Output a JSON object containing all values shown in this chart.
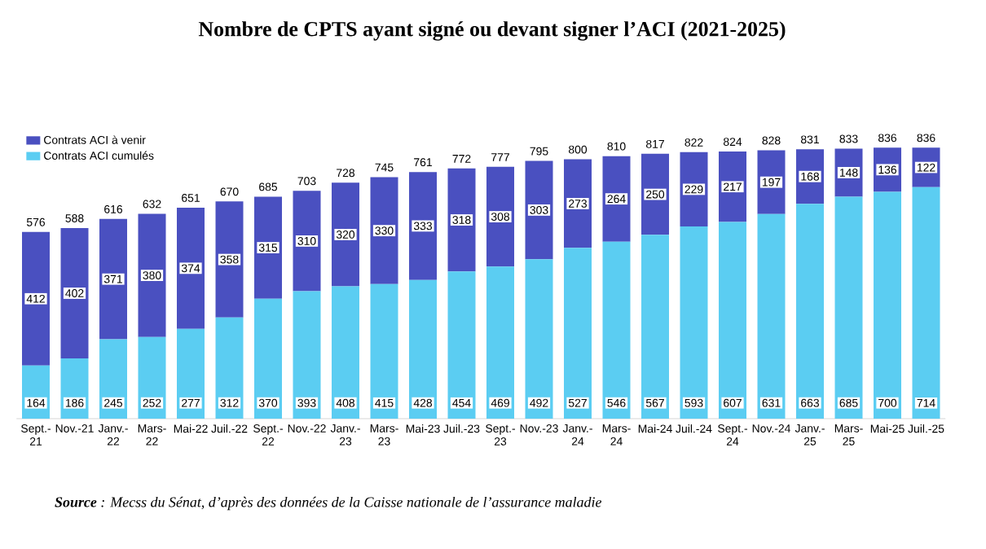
{
  "chart_data": {
    "type": "bar",
    "stacked": true,
    "title": "Nombre de CPTS ayant signé ou devant signer l’ACI (2021-2025)",
    "categories": [
      "Sept.-21",
      "Nov.-21",
      "Janv.-22",
      "Mars-22",
      "Mai-22",
      "Juil.-22",
      "Sept.-22",
      "Nov.-22",
      "Janv.-23",
      "Mars-23",
      "Mai-23",
      "Juil.-23",
      "Sept.-23",
      "Nov.-23",
      "Janv.-24",
      "Mars-24",
      "Mai-24",
      "Juil.-24",
      "Sept.-24",
      "Nov.-24",
      "Janv.-25",
      "Mars-25",
      "Mai-25",
      "Juil.-25"
    ],
    "series": [
      {
        "name": "Contrats ACI cumulés",
        "color": "#5bcdf2",
        "values": [
          164,
          186,
          245,
          252,
          277,
          312,
          370,
          393,
          408,
          415,
          428,
          454,
          469,
          492,
          527,
          546,
          567,
          593,
          607,
          631,
          663,
          685,
          700,
          714
        ]
      },
      {
        "name": "Contrats ACI à venir",
        "color": "#4a50c0",
        "values": [
          412,
          402,
          371,
          380,
          374,
          358,
          315,
          310,
          320,
          330,
          333,
          318,
          308,
          303,
          273,
          264,
          250,
          229,
          217,
          197,
          168,
          148,
          136,
          122
        ]
      }
    ],
    "totals": [
      "576",
      "588",
      "616",
      "632",
      "651",
      "670",
      "685",
      "703",
      "728",
      "745",
      "761",
      "772",
      "777",
      "795",
      "800",
      "810",
      "817",
      "822",
      "824",
      "828",
      "831",
      "833",
      "836",
      "836"
    ],
    "data_labels": true,
    "legend": "top left",
    "annotations": [
      "**Source** : Mecss du Sénat, d’après des données de la Caisse nationale de l’assurance maladie"
    ]
  }
}
